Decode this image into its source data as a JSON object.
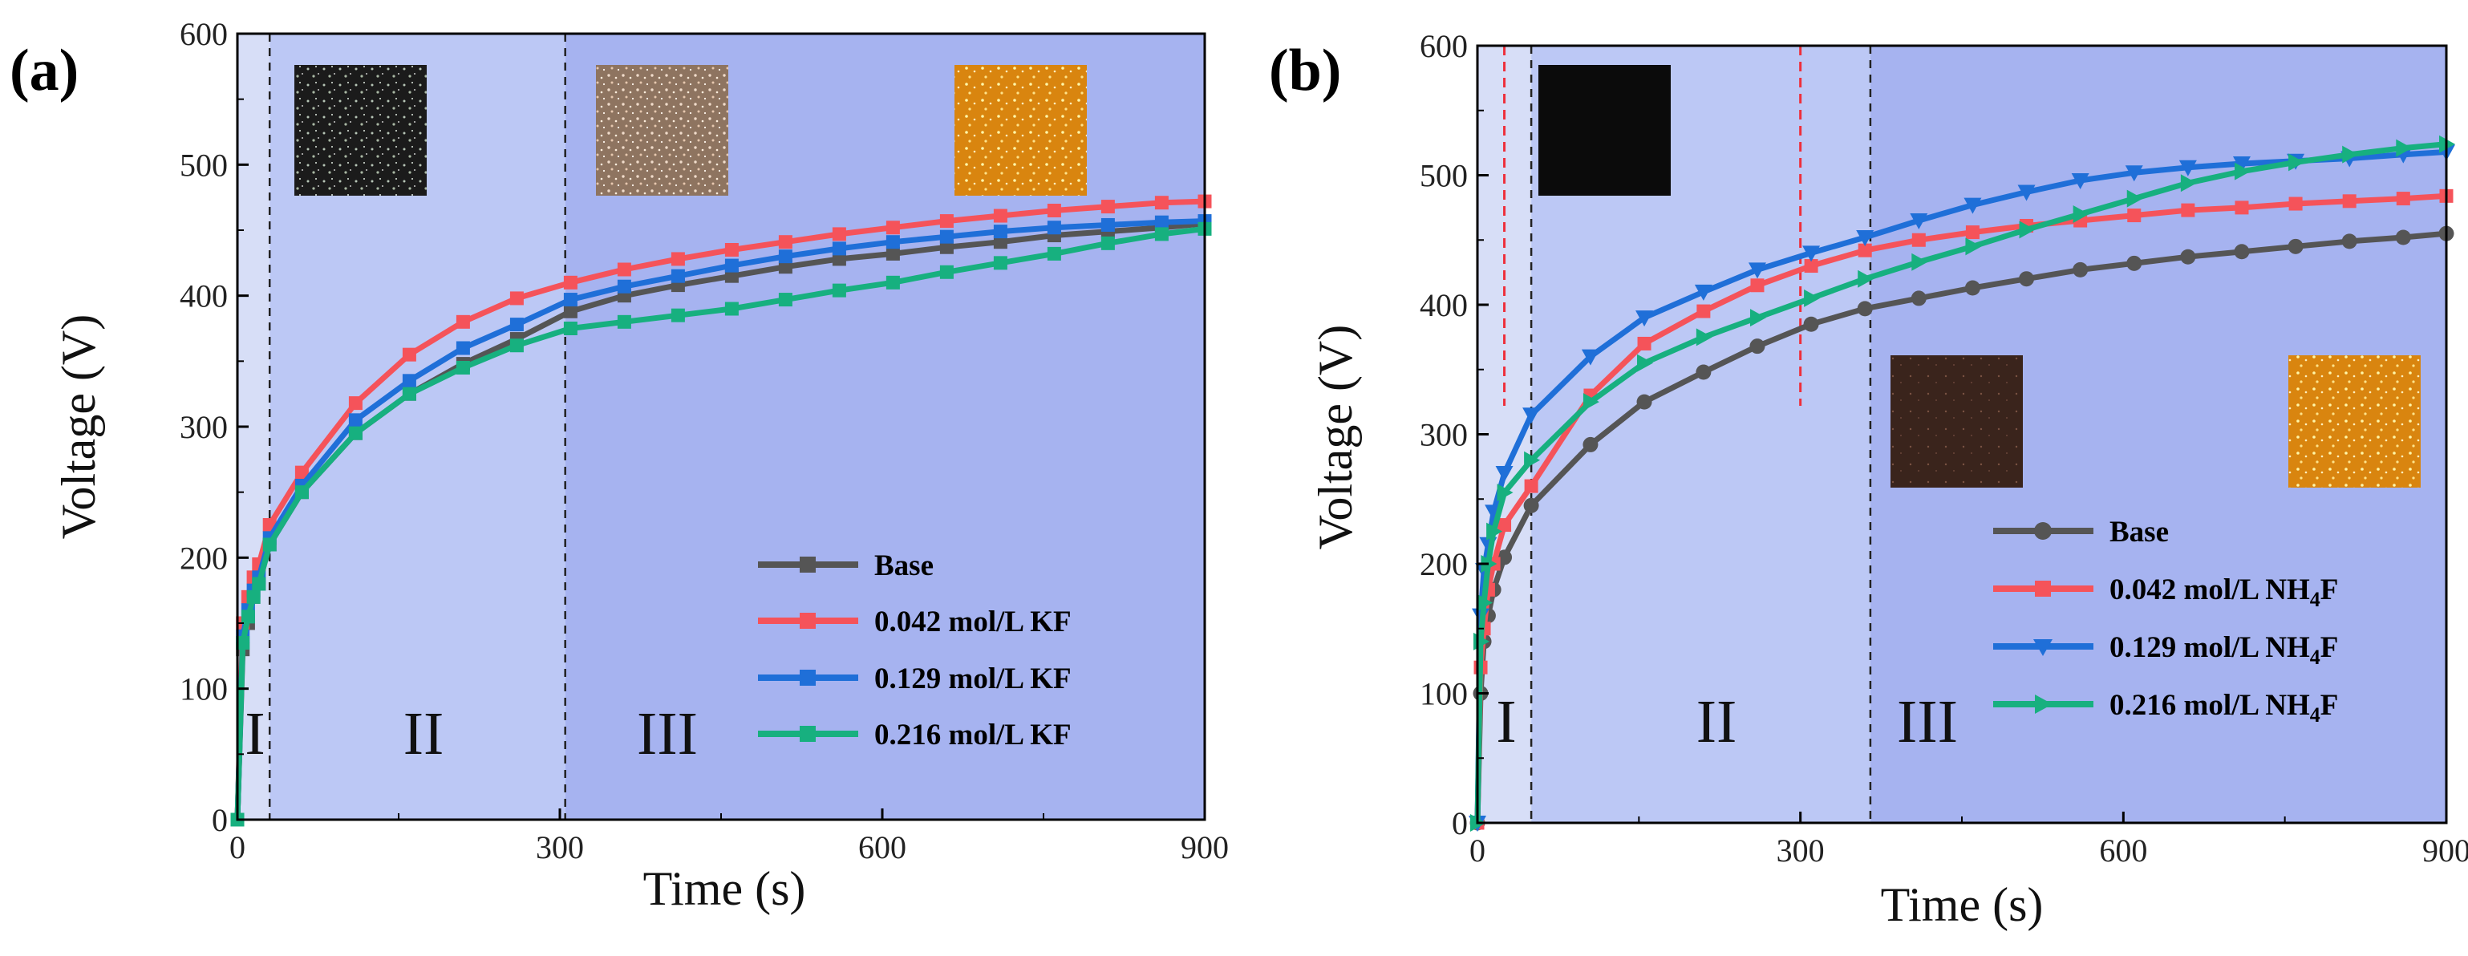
{
  "figure": {
    "panels": [
      {
        "letter": "(a)",
        "xlabel": "Time (s)",
        "ylabel": "Voltage (V)",
        "xticks": [
          "0",
          "300",
          "600",
          "900"
        ],
        "yticks": [
          "0",
          "100",
          "200",
          "300",
          "400",
          "500",
          "600"
        ],
        "regions": [
          "I",
          "II",
          "III"
        ],
        "legend": [
          {
            "main": "Base",
            "sub": "",
            "tail": ""
          },
          {
            "main": "0.042 mol/L KF",
            "sub": "",
            "tail": ""
          },
          {
            "main": "0.129 mol/L KF",
            "sub": "",
            "tail": ""
          },
          {
            "main": "0.216 mol/L KF",
            "sub": "",
            "tail": ""
          }
        ]
      },
      {
        "letter": "(b)",
        "xlabel": "Time (s)",
        "ylabel": "Voltage (V)",
        "xticks": [
          "0",
          "300",
          "600",
          "900"
        ],
        "yticks": [
          "0",
          "100",
          "200",
          "300",
          "400",
          "500",
          "600"
        ],
        "regions": [
          "I",
          "II",
          "III"
        ],
        "legend": [
          {
            "main": "Base",
            "sub": "",
            "tail": ""
          },
          {
            "main": "0.042 mol/L NH",
            "sub": "4",
            "tail": "F"
          },
          {
            "main": "0.129 mol/L NH",
            "sub": "4",
            "tail": "F"
          },
          {
            "main": "0.216 mol/L NH",
            "sub": "4",
            "tail": "F"
          }
        ]
      }
    ]
  },
  "colors": {
    "base": "#555555",
    "red": "#f5535a",
    "blue": "#1f6fd8",
    "green": "#17b07f",
    "region1": "#d7def7",
    "region2": "#bcc8f5",
    "region3": "#a6b3f0"
  },
  "chart_data": [
    {
      "type": "line",
      "title": "(a)",
      "xlabel": "Time (s)",
      "ylabel": "Voltage (V)",
      "xlim": [
        0,
        900
      ],
      "ylim": [
        0,
        600
      ],
      "boundaries": [
        30,
        305
      ],
      "insets": 3,
      "x": [
        0,
        5,
        10,
        15,
        20,
        30,
        60,
        110,
        160,
        210,
        260,
        310,
        360,
        410,
        460,
        510,
        560,
        610,
        660,
        710,
        760,
        810,
        860,
        900
      ],
      "series": [
        {
          "name": "Base",
          "color": "#555555",
          "marker": "square",
          "values": [
            0,
            130,
            150,
            170,
            180,
            210,
            250,
            295,
            325,
            348,
            367,
            388,
            400,
            408,
            415,
            422,
            428,
            432,
            437,
            441,
            446,
            449,
            452,
            455
          ]
        },
        {
          "name": "0.042 mol/L KF",
          "color": "#f5535a",
          "marker": "square",
          "values": [
            0,
            150,
            170,
            185,
            195,
            225,
            265,
            318,
            355,
            380,
            398,
            410,
            420,
            428,
            435,
            441,
            447,
            452,
            457,
            461,
            465,
            468,
            471,
            472
          ]
        },
        {
          "name": "0.129 mol/L KF",
          "color": "#1f6fd8",
          "marker": "square",
          "values": [
            0,
            140,
            160,
            175,
            185,
            215,
            255,
            305,
            335,
            360,
            378,
            397,
            407,
            415,
            423,
            430,
            436,
            441,
            445,
            449,
            452,
            454,
            456,
            457
          ]
        },
        {
          "name": "0.216 mol/L KF",
          "color": "#17b07f",
          "marker": "square",
          "values": [
            0,
            135,
            155,
            170,
            180,
            210,
            250,
            295,
            325,
            345,
            362,
            375,
            380,
            385,
            390,
            397,
            404,
            410,
            418,
            425,
            432,
            440,
            447,
            451
          ]
        }
      ]
    },
    {
      "type": "line",
      "title": "(b)",
      "xlabel": "Time (s)",
      "ylabel": "Voltage (V)",
      "xlim": [
        0,
        900
      ],
      "ylim": [
        0,
        600
      ],
      "boundaries_red": [
        25,
        300
      ],
      "boundaries_black": [
        50,
        365
      ],
      "insets": 3,
      "x": [
        0,
        3,
        6,
        10,
        15,
        25,
        50,
        105,
        155,
        210,
        260,
        310,
        360,
        410,
        460,
        510,
        560,
        610,
        660,
        710,
        760,
        810,
        860,
        900
      ],
      "series": [
        {
          "name": "Base",
          "color": "#555555",
          "marker": "circle",
          "values": [
            0,
            100,
            140,
            160,
            180,
            205,
            245,
            292,
            325,
            348,
            368,
            385,
            397,
            405,
            413,
            420,
            427,
            432,
            437,
            441,
            445,
            449,
            452,
            455
          ]
        },
        {
          "name": "0.042 mol/L NH4F",
          "color": "#f5535a",
          "marker": "square",
          "values": [
            0,
            120,
            150,
            180,
            200,
            230,
            260,
            330,
            370,
            395,
            415,
            430,
            442,
            450,
            456,
            461,
            465,
            469,
            473,
            475,
            478,
            480,
            482,
            484
          ]
        },
        {
          "name": "0.129 mol/L NH4F",
          "color": "#1f6fd8",
          "marker": "triangle-down",
          "values": [
            0,
            160,
            195,
            215,
            240,
            270,
            315,
            360,
            390,
            410,
            427,
            440,
            452,
            465,
            477,
            487,
            496,
            502,
            506,
            509,
            511,
            513,
            516,
            518
          ]
        },
        {
          "name": "0.216 mol/L NH4F",
          "color": "#17b07f",
          "marker": "triangle-right",
          "values": [
            0,
            140,
            170,
            200,
            225,
            255,
            280,
            325,
            355,
            375,
            390,
            405,
            420,
            433,
            445,
            458,
            470,
            482,
            494,
            503,
            510,
            516,
            521,
            524
          ]
        }
      ]
    }
  ]
}
